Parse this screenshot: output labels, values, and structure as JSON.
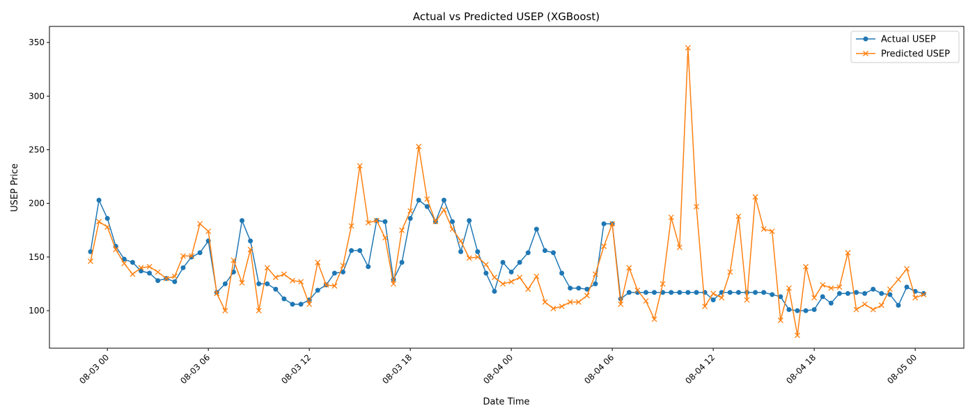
{
  "chart_data": {
    "type": "line",
    "title": "Actual vs Predicted USEP (XGBoost)",
    "xlabel": "Date Time",
    "ylabel": "USEP Price",
    "x_start": "2023-08-02T23:00",
    "x_step_minutes": 30,
    "x_ticks": [
      "08-03 00",
      "08-03 06",
      "08-03 12",
      "08-03 18",
      "08-04 00",
      "08-04 06",
      "08-04 12",
      "08-04 18",
      "08-05 00"
    ],
    "y_ticks": [
      100,
      150,
      200,
      250,
      300,
      350
    ],
    "ylim": [
      65,
      365
    ],
    "grid": false,
    "legend_position": "top-right",
    "series": [
      {
        "name": "Actual USEP",
        "color": "#1f77b4",
        "marker": "circle",
        "values": [
          155,
          203,
          186,
          160,
          148,
          145,
          137,
          135,
          128,
          130,
          127,
          140,
          150,
          154,
          165,
          117,
          125,
          136,
          184,
          165,
          125,
          125,
          120,
          111,
          106,
          106,
          110,
          119,
          124,
          135,
          136,
          156,
          156,
          141,
          184,
          183,
          129,
          145,
          186,
          203,
          197,
          183,
          203,
          183,
          155,
          184,
          155,
          135,
          118,
          145,
          136,
          145,
          154,
          176,
          156,
          154,
          135,
          121,
          121,
          120,
          125,
          181,
          181,
          111,
          117,
          117,
          117,
          117,
          117,
          117,
          117,
          117,
          117,
          117,
          110,
          117,
          117,
          117,
          117,
          117,
          117,
          115,
          113,
          101,
          100,
          100,
          101,
          113,
          107,
          116,
          116,
          117,
          116,
          120,
          116,
          115,
          105,
          122,
          118,
          116
        ]
      },
      {
        "name": "Predicted USEP",
        "color": "#ff7f0e",
        "marker": "x",
        "values": [
          146,
          183,
          178,
          157,
          144,
          134,
          140,
          141,
          136,
          130,
          132,
          151,
          151,
          181,
          174,
          116,
          100,
          147,
          126,
          157,
          100,
          140,
          131,
          134,
          128,
          127,
          106,
          145,
          124,
          123,
          142,
          179,
          235,
          182,
          184,
          168,
          125,
          175,
          193,
          253,
          204,
          183,
          194,
          176,
          165,
          149,
          150,
          143,
          131,
          125,
          127,
          131,
          120,
          132,
          108,
          102,
          104,
          108,
          108,
          114,
          134,
          160,
          181,
          106,
          140,
          119,
          109,
          92,
          125,
          187,
          159,
          345,
          197,
          104,
          116,
          112,
          136,
          188,
          110,
          206,
          176,
          174,
          91,
          121,
          77,
          141,
          112,
          124,
          121,
          122,
          154,
          101,
          106,
          101,
          105,
          120,
          129,
          139,
          112,
          115
        ]
      }
    ]
  }
}
